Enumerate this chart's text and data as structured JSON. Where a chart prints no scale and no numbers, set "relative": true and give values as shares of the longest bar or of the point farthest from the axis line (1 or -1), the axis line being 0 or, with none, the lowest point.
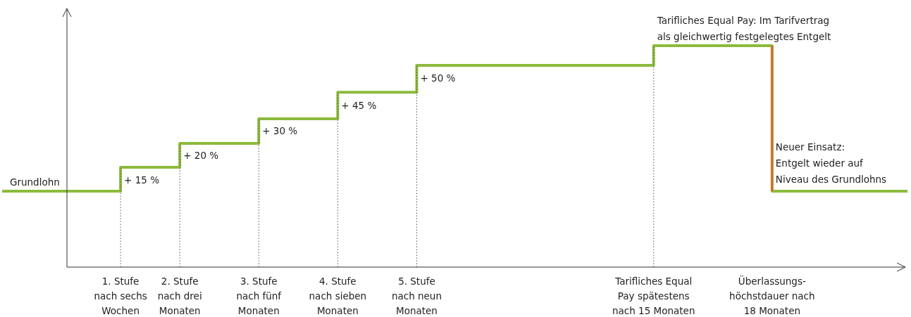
{
  "chart_data": {
    "type": "step",
    "relative": true,
    "tick_labels": "x",
    "categories": [
      null,
      null,
      null,
      null,
      null,
      null,
      "1. Stufe\nnach sechs\nWochen",
      null,
      null,
      "2. Stufe\nnach drei\nMonaten",
      null,
      null,
      null,
      "3. Stufe\nnach fünf\nMonaten",
      null,
      null,
      null,
      "4. Stufe\nnach sieben\nMonaten",
      null,
      null,
      null,
      "5. Stufe\nnach neun\nMonaten",
      null,
      null,
      null,
      null,
      null,
      null,
      null,
      null,
      null,
      null,
      null,
      "Tarifliches Equal\nPay spätestens\nnach 15 Monaten",
      null,
      null,
      null,
      null,
      null,
      "Überlassungs-\nhöchstdauer nach\n18 Monaten",
      null,
      null,
      null,
      null,
      null,
      null
    ],
    "series": [
      {
        "color": "#8dba3c",
        "values": [
          0.343,
          0.343,
          0.343,
          0.343,
          0.343,
          0.343,
          0.451,
          0.451,
          0.451,
          0.559,
          0.559,
          0.559,
          0.559,
          0.67,
          0.67,
          0.67,
          0.67,
          0.79,
          0.79,
          0.79,
          0.79,
          0.911,
          0.911,
          0.911,
          0.911,
          0.911,
          0.911,
          0.911,
          0.911,
          0.911,
          0.911,
          0.911,
          0.911,
          1,
          1,
          1,
          1,
          1,
          1,
          0.343,
          0.343,
          0.343,
          0.343,
          0.343,
          0.343,
          0.343
        ]
      }
    ],
    "ref_lines": [
      {
        "axis": "x",
        "value": "1. Stufe\nnach sechs\nWochen",
        "line_style": "dotted",
        "color": "#555555"
      },
      {
        "axis": "x",
        "value": "2. Stufe\nnach drei\nMonaten",
        "line_style": "dotted",
        "color": "#555555"
      },
      {
        "axis": "x",
        "value": "3. Stufe\nnach fünf\nMonaten",
        "line_style": "dotted",
        "color": "#555555"
      },
      {
        "axis": "x",
        "value": "4. Stufe\nnach sieben\nMonaten",
        "line_style": "dotted",
        "color": "#555555"
      },
      {
        "axis": "x",
        "value": "5. Stufe\nnach neun\nMonaten",
        "line_style": "dotted",
        "color": "#555555"
      },
      {
        "axis": "x",
        "value": "Tarifliches Equal\nPay spätestens\nnach 15 Monaten",
        "line_style": "dotted",
        "color": "#555555"
      },
      {
        "axis": "x",
        "value": "Überlassungs-\nhöchstdauer nach\n18 Monaten",
        "line_style": "solid",
        "color": "#e8622b"
      }
    ],
    "annotations": [
      {
        "text": "Grundlohn",
        "y": 0.343
      },
      {
        "text": "+ 15 %",
        "x": "1. Stufe\nnach sechs\nWochen",
        "y": 0.352
      },
      {
        "text": "+ 20 %",
        "x": "2. Stufe\nnach drei\nMonaten",
        "y": 0.463
      },
      {
        "text": "+ 30 %",
        "x": "3. Stufe\nnach fünf\nMonaten",
        "y": 0.575
      },
      {
        "text": "+ 45 %",
        "x": "4. Stufe\nnach sieben\nMonaten",
        "y": 0.689
      },
      {
        "text": "+ 50 %",
        "x": "5. Stufe\nnach neun\nMonaten",
        "y": 0.813
      },
      {
        "text": "Tarifliches Equal Pay: Im Tarifvertrag\nals gleichwertig festgelegtes Entgelt",
        "x": "Tarifliches Equal\nPay spätestens\nnach 15 Monaten",
        "y": 1
      },
      {
        "text": "Neuer Einsatz:\nEntgelt wieder auf\nNiveau des Grundlohns",
        "x": "Überlassungs-\nhöchstdauer nach\n18 Monaten",
        "y": 0.356
      }
    ]
  }
}
